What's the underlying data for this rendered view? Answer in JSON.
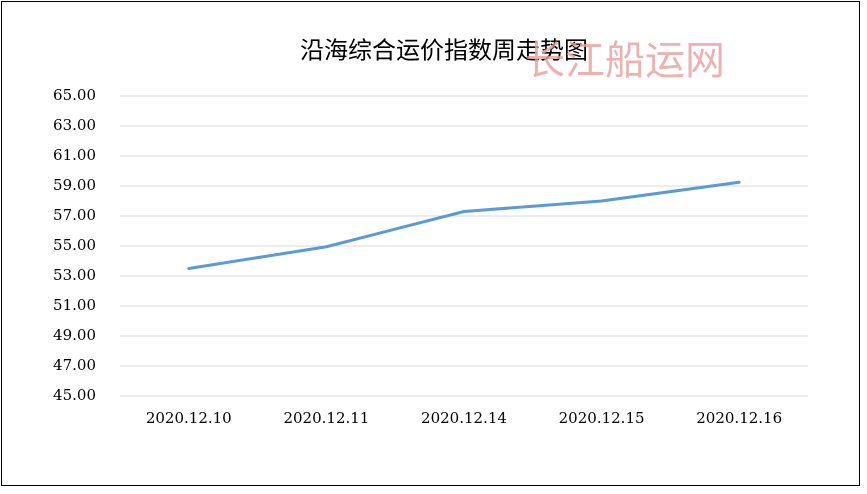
{
  "chart_data": {
    "type": "line",
    "title": "沿海综合运价指数周走势图",
    "watermark": "长江船运网",
    "categories": [
      "2020.12.10",
      "2020.12.11",
      "2020.12.14",
      "2020.12.15",
      "2020.12.16"
    ],
    "series": [
      {
        "name": "沿海综合运价指数",
        "color": "#5b9bd5",
        "values": [
          53.5,
          54.95,
          57.3,
          58.0,
          59.25
        ]
      }
    ],
    "ylim": [
      45,
      65
    ],
    "yticks": [
      {
        "value": 45,
        "label": "45.00"
      },
      {
        "value": 47,
        "label": "47.00"
      },
      {
        "value": 49,
        "label": "49.00"
      },
      {
        "value": 51,
        "label": "51.00"
      },
      {
        "value": 53,
        "label": "53.00"
      },
      {
        "value": 55,
        "label": "55.00"
      },
      {
        "value": 57,
        "label": "57.00"
      },
      {
        "value": 59,
        "label": "59.00"
      },
      {
        "value": 61,
        "label": "61.00"
      },
      {
        "value": 63,
        "label": "63.00"
      },
      {
        "value": 65,
        "label": "65.00"
      }
    ],
    "grid": true
  }
}
